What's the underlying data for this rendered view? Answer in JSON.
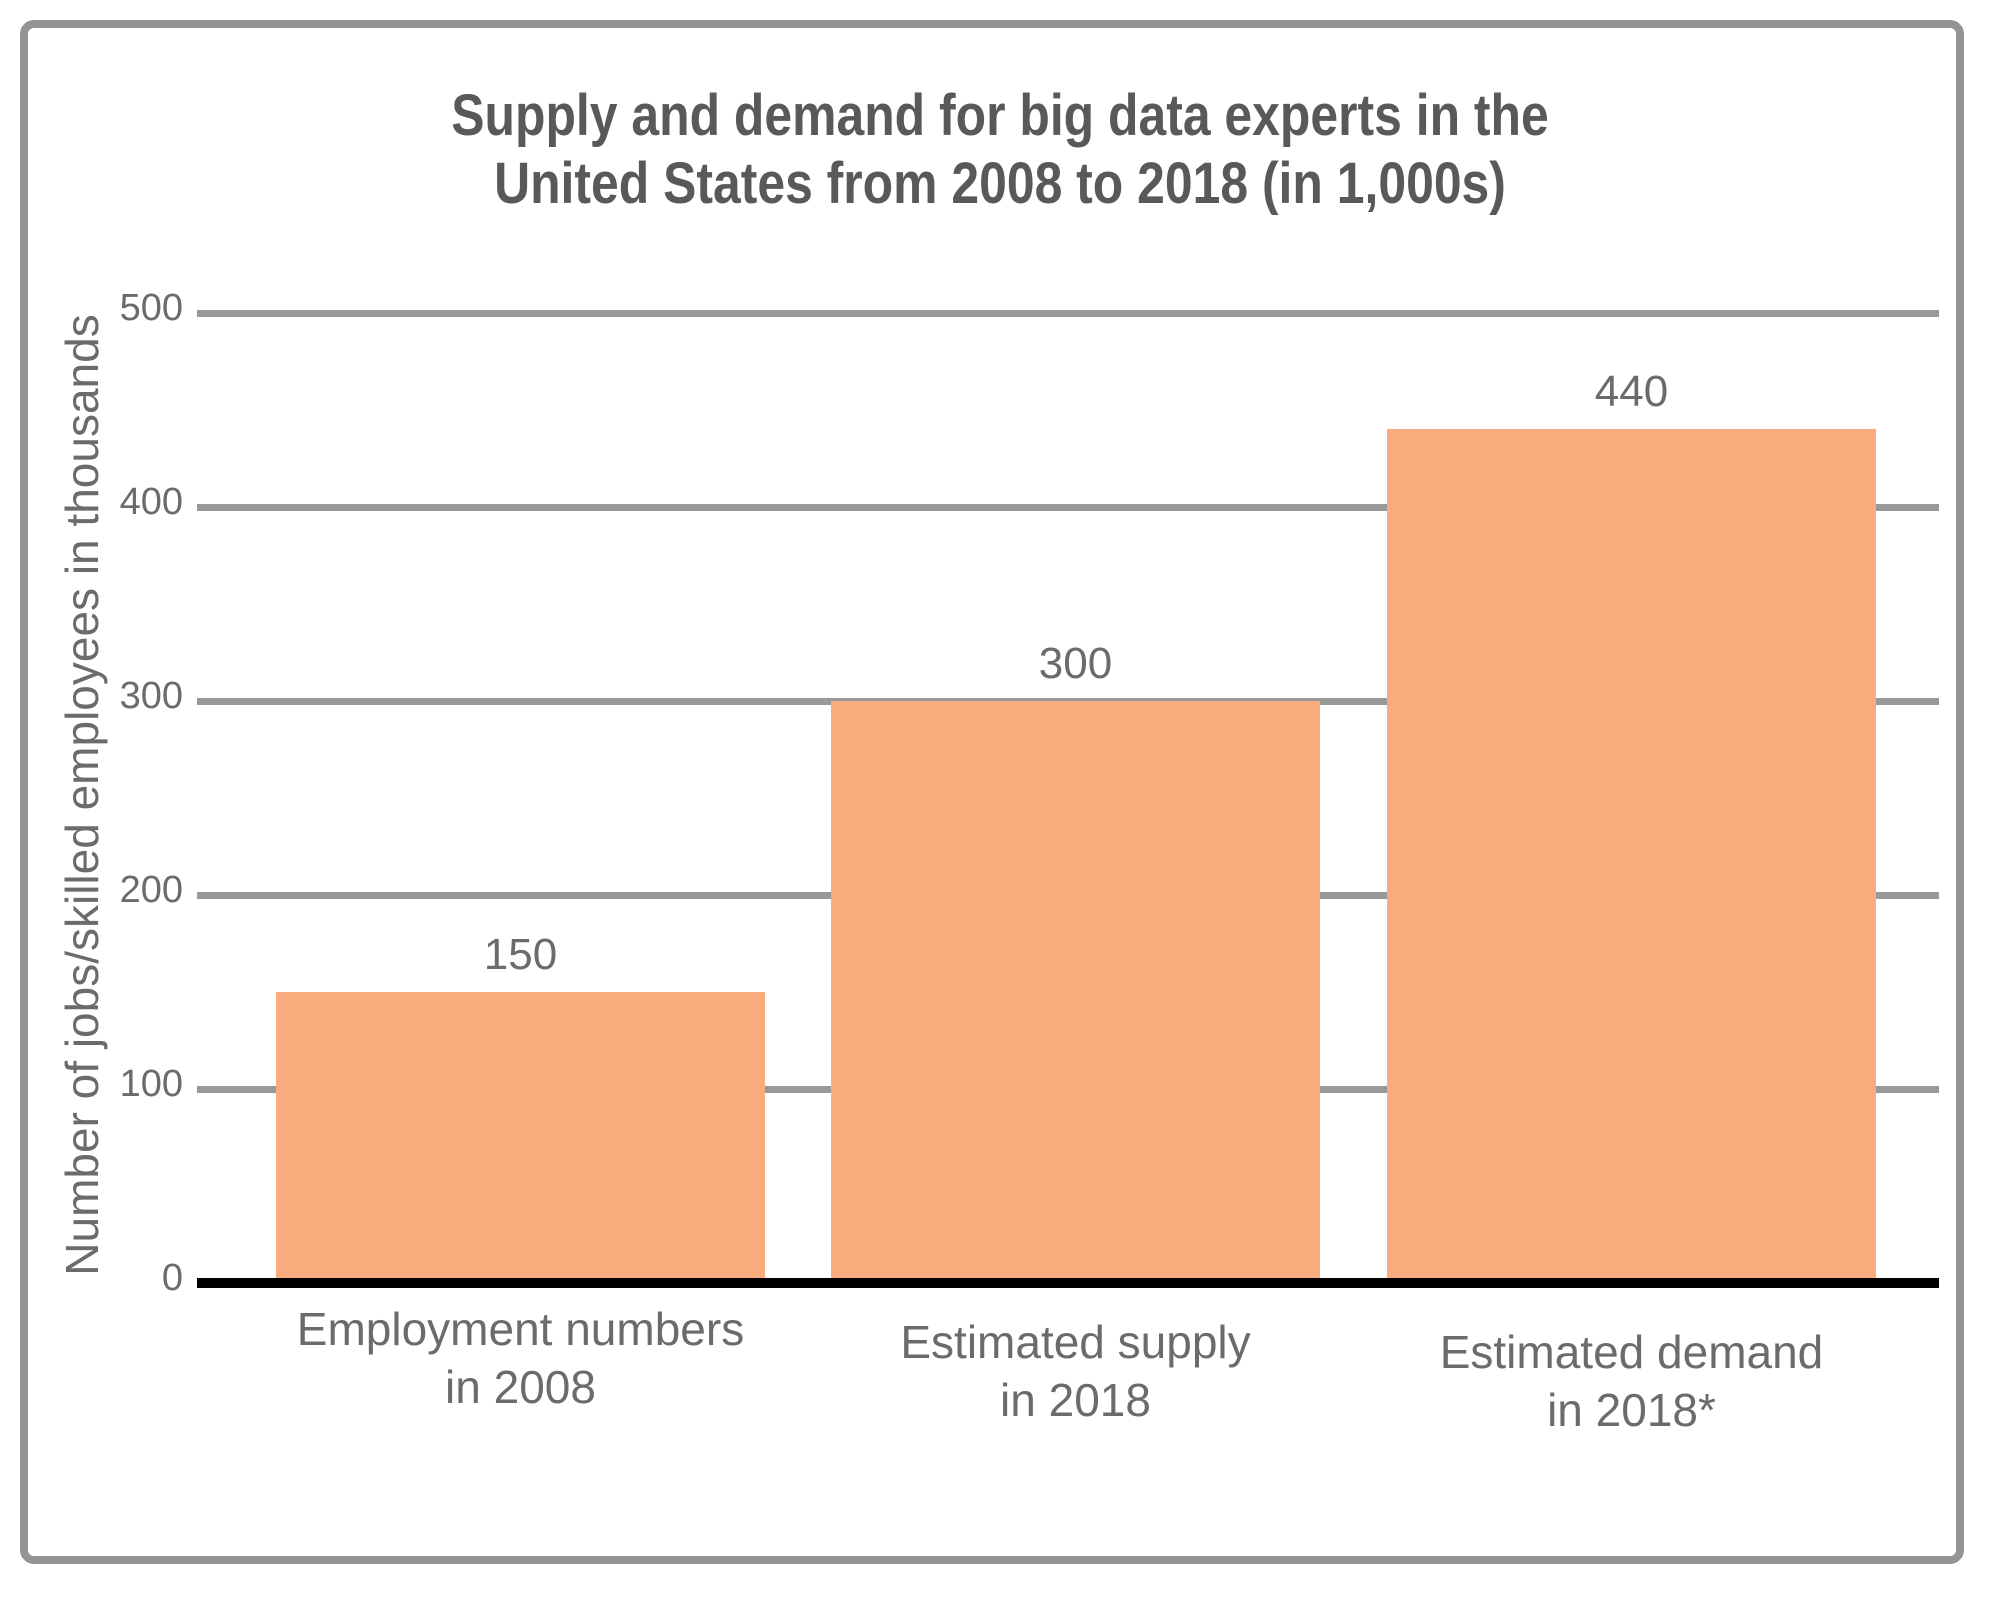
{
  "page": {
    "background": "#FFFFFF",
    "frame_color": "#949494"
  },
  "chart_data": {
    "type": "bar",
    "title_lines": [
      "Supply and demand for big data experts in the",
      "United States from 2008 to 2018 (in 1,000s)"
    ],
    "ylabel": "Number of jobs/skilled employees in thousands",
    "xlabel": "",
    "categories": [
      [
        "Employment numbers",
        "in 2008"
      ],
      [
        "Estimated supply",
        "in 2018"
      ],
      [
        "Estimated demand",
        "in 2018*"
      ]
    ],
    "values": [
      150,
      300,
      440
    ],
    "bar_labels": [
      "150",
      "300",
      "440"
    ],
    "yticks": [
      0,
      100,
      200,
      300,
      400,
      500
    ],
    "ylim": [
      0,
      500
    ],
    "grid": true,
    "legend": false,
    "bar_color": "#F9AC7E",
    "gridline_color": "#999999",
    "axis_color": "#000000",
    "tick_text_color": "#6B6B6B",
    "label_text_color": "#6B6B6B",
    "title_color": "#595959"
  }
}
